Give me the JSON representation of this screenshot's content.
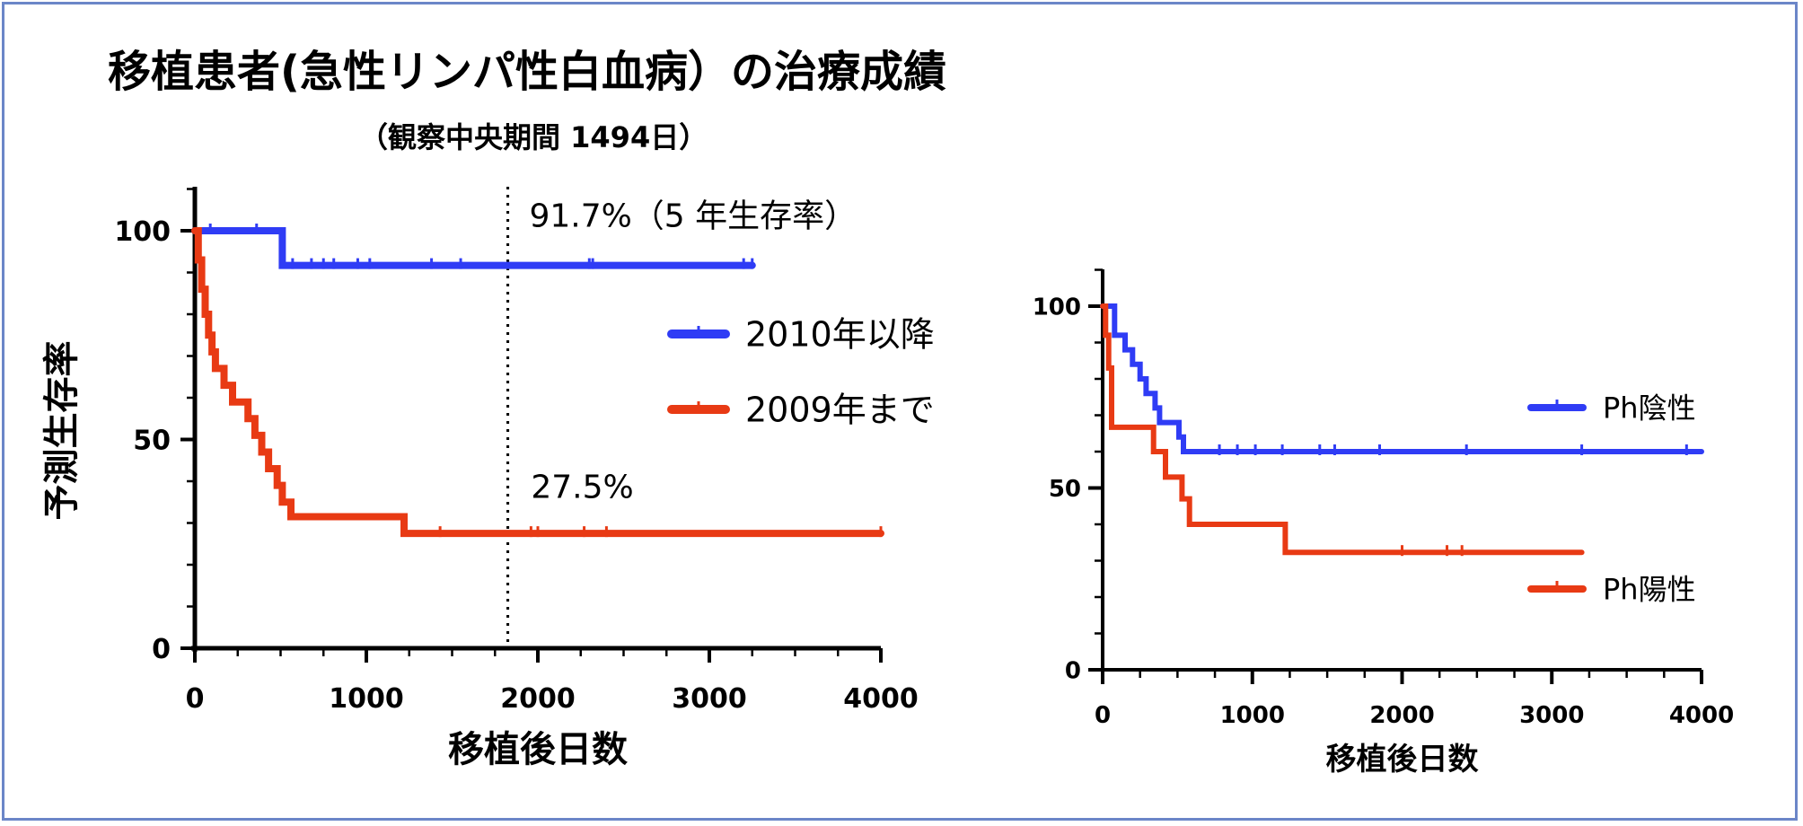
{
  "title": "移植患者(急性リンパ性白血病）の治療成績",
  "subtitle": "（観察中央期間 1494日）",
  "colors": {
    "blue": "#2f3cf5",
    "red": "#e83a14",
    "frame": "#6b86c8"
  },
  "chart_data": [
    {
      "type": "line",
      "step": true,
      "xlabel": "移植後日数",
      "ylabel": "予測生存率",
      "xlim": [
        0,
        4000
      ],
      "ylim": [
        0,
        100
      ],
      "xticks": [
        "0",
        "1000",
        "2000",
        "3000",
        "4000"
      ],
      "yticks": [
        "0",
        "50",
        "100"
      ],
      "reference_line": {
        "x": 1825,
        "style": "dotted"
      },
      "annotations": [
        {
          "text": "91.7%（5 年生存率）",
          "x": 1950,
          "y": 101
        },
        {
          "text": "27.5%",
          "x": 1960,
          "y": 36
        }
      ],
      "legend_placement": "right",
      "series": [
        {
          "name": "2010年以降",
          "color": "#2f3cf5",
          "points": [
            [
              0,
              100
            ],
            [
              510,
              100
            ],
            [
              510,
              91.7
            ],
            [
              3250,
              91.7
            ]
          ],
          "censor_x": [
            90,
            360,
            570,
            680,
            750,
            810,
            950,
            1020,
            1380,
            1550,
            2300,
            2320,
            3200,
            3250
          ]
        },
        {
          "name": "2009年まで",
          "color": "#e83a14",
          "points": [
            [
              0,
              100
            ],
            [
              20,
              100
            ],
            [
              20,
              93
            ],
            [
              40,
              93
            ],
            [
              40,
              86
            ],
            [
              60,
              86
            ],
            [
              60,
              80
            ],
            [
              80,
              80
            ],
            [
              80,
              75
            ],
            [
              100,
              75
            ],
            [
              100,
              71
            ],
            [
              120,
              71
            ],
            [
              120,
              67
            ],
            [
              170,
              67
            ],
            [
              170,
              63
            ],
            [
              220,
              63
            ],
            [
              220,
              59
            ],
            [
              310,
              59
            ],
            [
              310,
              55
            ],
            [
              350,
              55
            ],
            [
              350,
              51
            ],
            [
              390,
              51
            ],
            [
              390,
              47
            ],
            [
              430,
              47
            ],
            [
              430,
              43
            ],
            [
              480,
              43
            ],
            [
              480,
              39
            ],
            [
              510,
              39
            ],
            [
              510,
              35
            ],
            [
              560,
              35
            ],
            [
              560,
              31.5
            ],
            [
              1220,
              31.5
            ],
            [
              1220,
              27.5
            ],
            [
              4000,
              27.5
            ]
          ],
          "censor_x": [
            1430,
            1960,
            2000,
            2270,
            2400,
            4000
          ]
        }
      ]
    },
    {
      "type": "line",
      "step": true,
      "xlabel": "移植後日数",
      "ylabel": "",
      "xlim": [
        0,
        4000
      ],
      "ylim": [
        0,
        100
      ],
      "xticks": [
        "0",
        "1000",
        "2000",
        "3000",
        "4000"
      ],
      "yticks": [
        "0",
        "50",
        "100"
      ],
      "legend_placement": "right",
      "series": [
        {
          "name": "Ph陰性",
          "color": "#2f3cf5",
          "points": [
            [
              0,
              100
            ],
            [
              80,
              100
            ],
            [
              80,
              92
            ],
            [
              150,
              92
            ],
            [
              150,
              88
            ],
            [
              200,
              88
            ],
            [
              200,
              84
            ],
            [
              250,
              84
            ],
            [
              250,
              80
            ],
            [
              290,
              80
            ],
            [
              290,
              76
            ],
            [
              350,
              76
            ],
            [
              350,
              72
            ],
            [
              380,
              72
            ],
            [
              380,
              68
            ],
            [
              510,
              68
            ],
            [
              510,
              64
            ],
            [
              540,
              64
            ],
            [
              540,
              60
            ],
            [
              4000,
              60
            ]
          ],
          "censor_x": [
            780,
            900,
            1020,
            1200,
            1450,
            1550,
            1850,
            2430,
            3200,
            3900
          ]
        },
        {
          "name": "Ph陽性",
          "color": "#e83a14",
          "points": [
            [
              0,
              100
            ],
            [
              20,
              100
            ],
            [
              20,
              92
            ],
            [
              40,
              92
            ],
            [
              40,
              83
            ],
            [
              60,
              83
            ],
            [
              60,
              66.7
            ],
            [
              340,
              66.7
            ],
            [
              340,
              60
            ],
            [
              420,
              60
            ],
            [
              420,
              53
            ],
            [
              530,
              53
            ],
            [
              530,
              47
            ],
            [
              580,
              47
            ],
            [
              580,
              40
            ],
            [
              1220,
              40
            ],
            [
              1220,
              32.3
            ],
            [
              3200,
              32.3
            ]
          ],
          "censor_x": [
            2000,
            2300,
            2400
          ]
        }
      ]
    }
  ]
}
